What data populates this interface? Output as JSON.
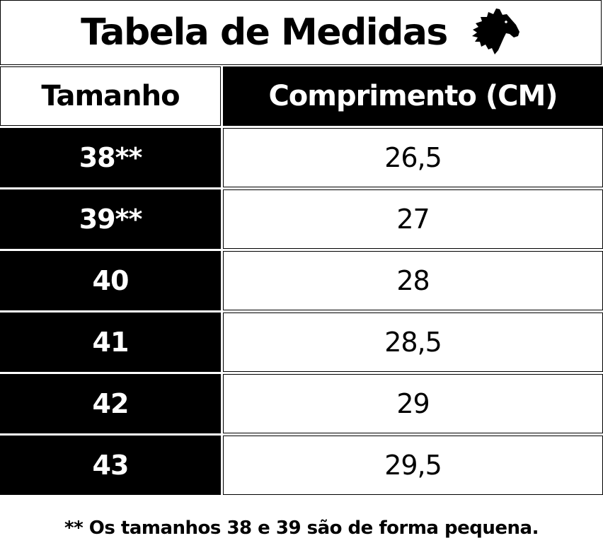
{
  "title": "Tabela de Medidas",
  "logo_icon": "horse-head-icon",
  "colors": {
    "dark": "#000000",
    "light": "#ffffff"
  },
  "table": {
    "headers": {
      "size": "Tamanho",
      "length": "Comprimento (CM)"
    },
    "rows": [
      {
        "size": "38**",
        "length": "26,5"
      },
      {
        "size": "39**",
        "length": "27"
      },
      {
        "size": "40",
        "length": "28"
      },
      {
        "size": "41",
        "length": "28,5"
      },
      {
        "size": "42",
        "length": "29"
      },
      {
        "size": "43",
        "length": "29,5"
      }
    ]
  },
  "footnote": "** Os tamanhos 38 e 39 são de forma pequena."
}
